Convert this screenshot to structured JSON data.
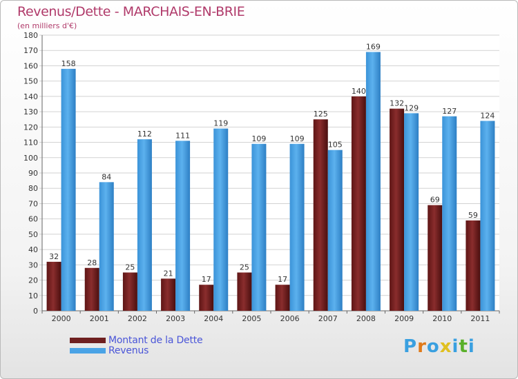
{
  "title": "Revenus/Dette - MARCHAIS-EN-BRIE",
  "subtitle": "(en milliers d'€)",
  "logo": {
    "letters": [
      "P",
      "r",
      "o",
      "x",
      "i",
      "t",
      "i"
    ],
    "colors": [
      "#3aa0e0",
      "#e07a1a",
      "#3aa0e0",
      "#e0c020",
      "#3aa0e0",
      "#5ab02a",
      "#3aa0e0"
    ]
  },
  "legend": [
    {
      "label": "Montant de la Dette",
      "color": "#6e1f1f"
    },
    {
      "label": "Revenus",
      "color": "#4aa3e6"
    }
  ],
  "chart_data": {
    "type": "bar",
    "categories": [
      "2000",
      "2001",
      "2002",
      "2003",
      "2004",
      "2005",
      "2006",
      "2007",
      "2008",
      "2009",
      "2010",
      "2011"
    ],
    "series": [
      {
        "name": "Montant de la Dette",
        "color": "#7a2424",
        "values": [
          32,
          28,
          25,
          21,
          17,
          25,
          17,
          125,
          140,
          132,
          69,
          59
        ]
      },
      {
        "name": "Revenus",
        "color": "#4aa3e6",
        "values": [
          158,
          84,
          112,
          111,
          119,
          109,
          109,
          105,
          169,
          129,
          127,
          124
        ]
      }
    ],
    "ylim": [
      0,
      180
    ],
    "ytick_step": 10,
    "grid": true,
    "legend_position": "bottom-left"
  }
}
